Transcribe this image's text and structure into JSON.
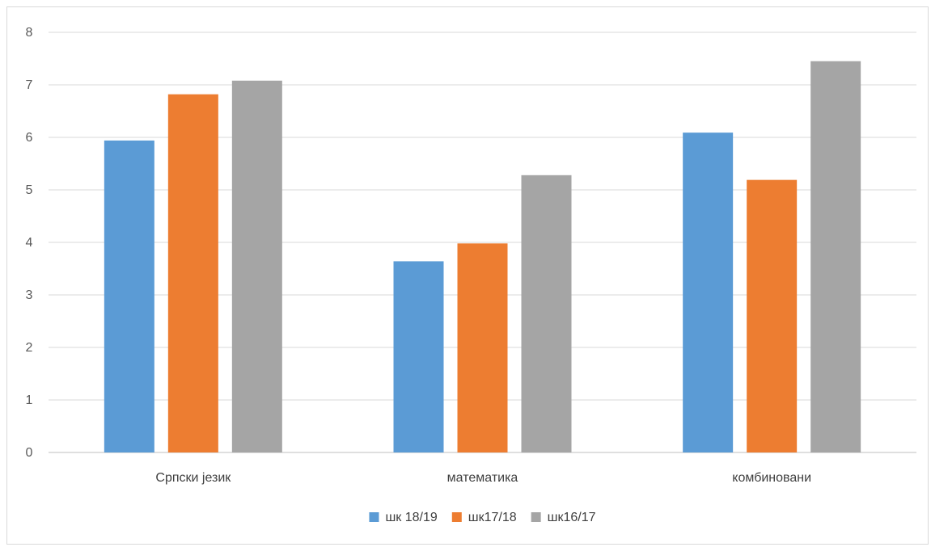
{
  "chart_data": {
    "type": "bar",
    "categories": [
      "Српски језик",
      "математика",
      "комбиновани"
    ],
    "series": [
      {
        "name": "шк 18/19",
        "color": "#5b9bd5",
        "values": [
          5.94,
          3.64,
          6.09
        ]
      },
      {
        "name": "шк17/18",
        "color": "#ed7d31",
        "values": [
          6.82,
          3.98,
          5.19
        ]
      },
      {
        "name": "шк16/17",
        "color": "#a5a5a5",
        "values": [
          7.08,
          5.28,
          7.45
        ]
      }
    ],
    "yticks": [
      "0",
      "1",
      "2",
      "3",
      "4",
      "5",
      "6",
      "7",
      "8"
    ],
    "ylim": [
      0,
      8
    ],
    "grid": true,
    "legend_position": "bottom"
  }
}
